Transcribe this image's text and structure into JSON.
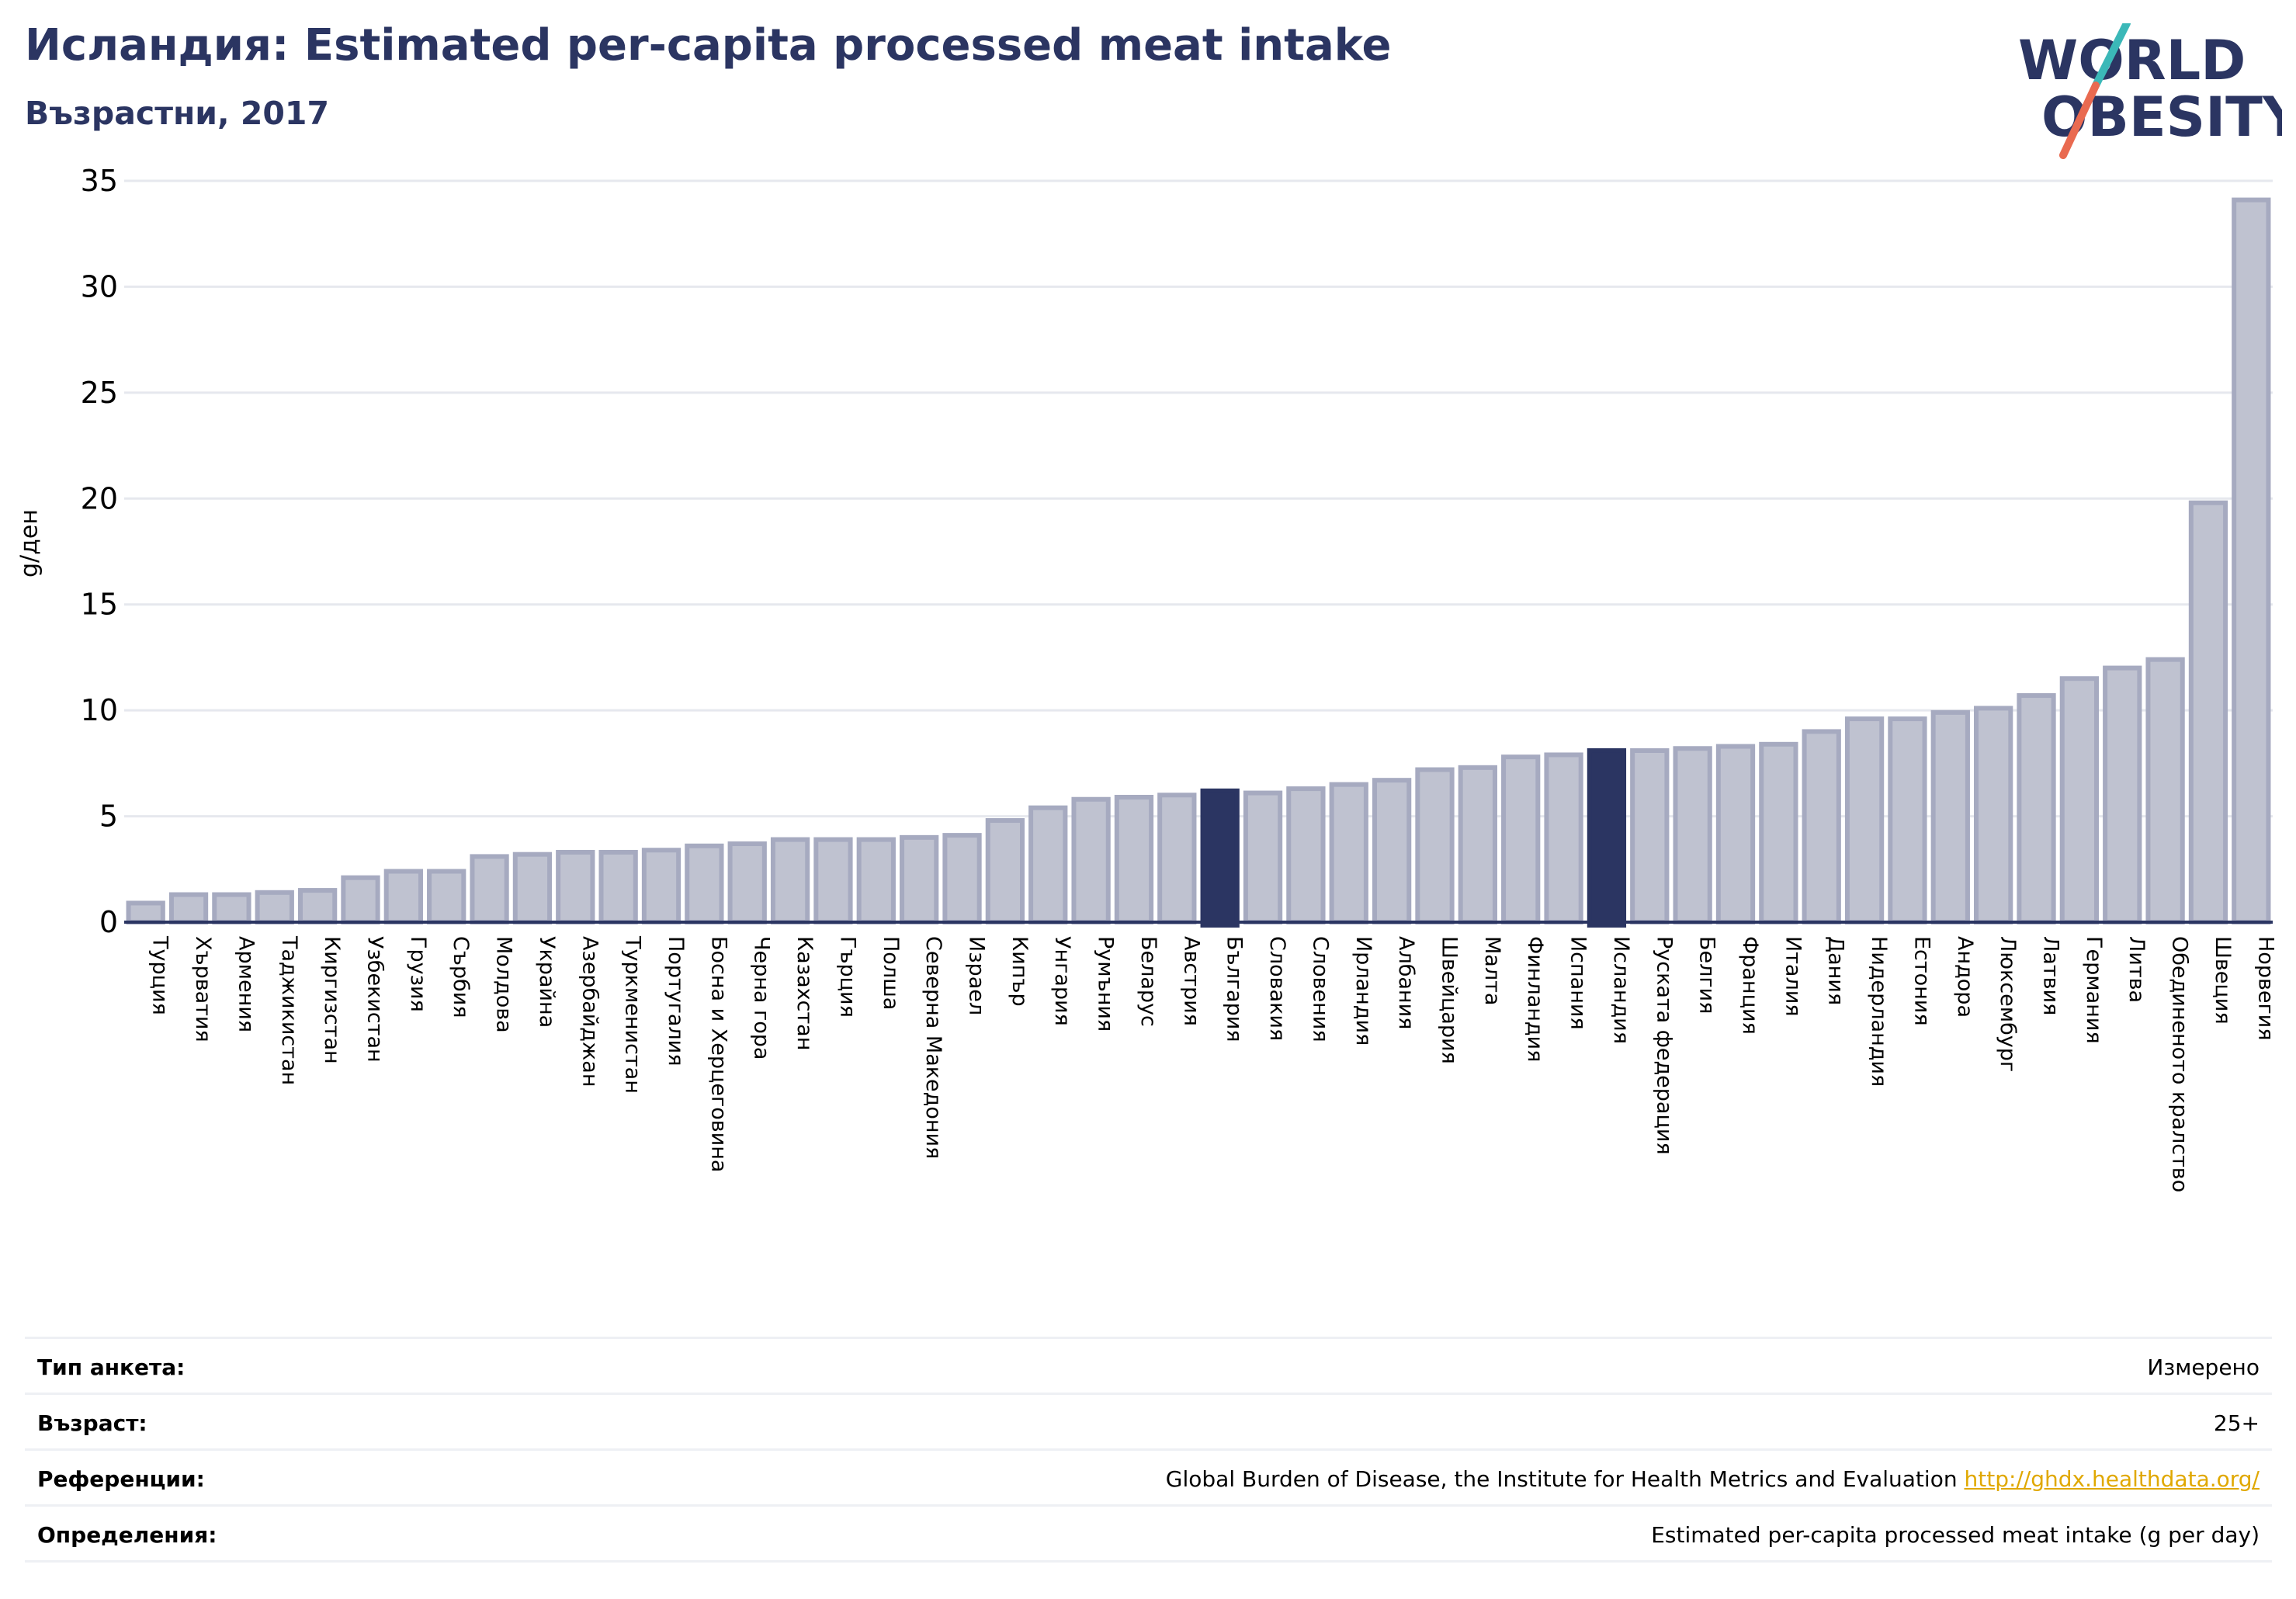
{
  "header": {
    "title": "Исландия: Estimated per-capita processed meat intake",
    "subtitle": "Възрастни, 2017"
  },
  "logo": {
    "line1": "WORLD",
    "line2": "OBESITY"
  },
  "colors": {
    "bar": "#bfc2d0",
    "bar_stroke": "#a6aac0",
    "highlight": "#2b3562",
    "grid": "#e6e8ee",
    "axis": "#2b3562",
    "logo_text": "#2b3562",
    "logo_teal": "#3bb8b8",
    "logo_red": "#e96a50"
  },
  "chart_data": {
    "type": "bar",
    "ylabel": "g/ден",
    "ylim": [
      0,
      35
    ],
    "yticks": [
      0,
      5,
      10,
      15,
      20,
      25,
      30,
      35
    ],
    "grid": true,
    "categories": [
      "Турция",
      "Хърватия",
      "Армения",
      "Таджикистан",
      "Киргизстан",
      "Узбекистан",
      "Грузия",
      "Сърбия",
      "Молдова",
      "Украйна",
      "Азербайджан",
      "Туркменистан",
      "Португалия",
      "Босна и Херцеговина",
      "Черна гора",
      "Казахстан",
      "Гърция",
      "Полша",
      "Северна Македония",
      "Израел",
      "Кипър",
      "Унгария",
      "Румъния",
      "Беларус",
      "Австрия",
      "България",
      "Словакия",
      "Словения",
      "Ирландия",
      "Албания",
      "Швейцария",
      "Малта",
      "Финландия",
      "Испания",
      "Исландия",
      "Руската федерация",
      "Белгия",
      "Франция",
      "Италия",
      "Дания",
      "Нидерландия",
      "Естония",
      "Андора",
      "Люксембург",
      "Латвия",
      "Германия",
      "Литва",
      "Обединеното кралство",
      "Швеция",
      "Норвегия"
    ],
    "values": [
      0.9,
      1.3,
      1.3,
      1.4,
      1.5,
      2.1,
      2.4,
      2.4,
      3.1,
      3.2,
      3.3,
      3.3,
      3.4,
      3.6,
      3.7,
      3.9,
      3.9,
      3.9,
      4.0,
      4.1,
      4.8,
      5.4,
      5.8,
      5.9,
      6.0,
      6.2,
      6.1,
      6.3,
      6.5,
      6.7,
      7.2,
      7.3,
      7.8,
      7.9,
      8.1,
      8.1,
      8.2,
      8.3,
      8.4,
      9.0,
      9.6,
      9.6,
      9.9,
      10.1,
      10.7,
      11.5,
      12.0,
      12.4,
      19.8,
      34.1
    ],
    "highlight": [
      "България",
      "Исландия"
    ]
  },
  "footer": {
    "rows": [
      {
        "label": "Тип анкета:",
        "value": "Измерено"
      },
      {
        "label": "Възраст:",
        "value": "25+"
      },
      {
        "label": "Референции:",
        "value": "Global Burden of Disease, the Institute for Health Metrics and Evaluation",
        "link": "http://ghdx.healthdata.org/"
      },
      {
        "label": "Определения:",
        "value": "Estimated per-capita processed meat intake (g per day)"
      }
    ]
  }
}
